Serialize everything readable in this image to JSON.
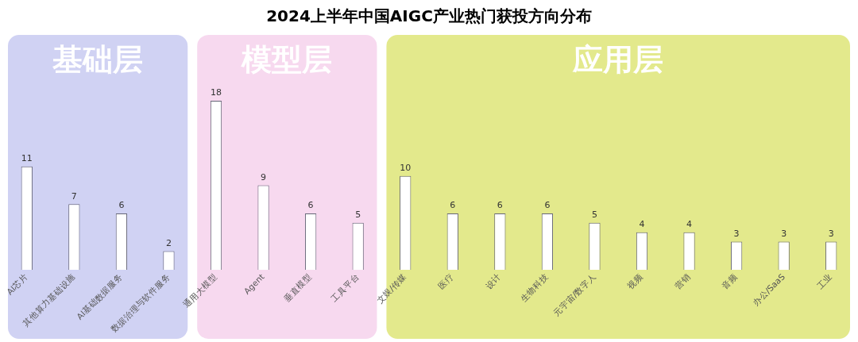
{
  "chart_data": {
    "type": "bar",
    "title": "2024上半年中国AIGC产业热门获投方向分布",
    "categories": [
      "AI芯片",
      "其他算力基础设施",
      "AI基础数据服务",
      "数据治理与软件服务",
      "通用大模型",
      "Agent",
      "垂直模型",
      "工具平台",
      "文娱/传媒",
      "医疗",
      "设计",
      "生物科技",
      "元宇宙/数字人",
      "视频",
      "营销",
      "音频",
      "办公/SaaS",
      "工业"
    ],
    "values": [
      11,
      7,
      6,
      2,
      18,
      9,
      6,
      5,
      10,
      6,
      6,
      6,
      5,
      4,
      4,
      3,
      3,
      3
    ],
    "color": "#ffffff",
    "data_labels": true,
    "tick_labels": "x",
    "grid": false,
    "legend": false,
    "bands": [
      {
        "axis": "x",
        "from": "AI芯片",
        "to": "数据治理与软件服务",
        "label": "基础层",
        "color": "#d0d2f3"
      },
      {
        "axis": "x",
        "from": "通用大模型",
        "to": "工具平台",
        "label": "模型层",
        "color": "#f7d9ef"
      },
      {
        "axis": "x",
        "from": "文娱/传媒",
        "to": "工业",
        "label": "应用层",
        "color": "#e3e98c"
      }
    ]
  }
}
